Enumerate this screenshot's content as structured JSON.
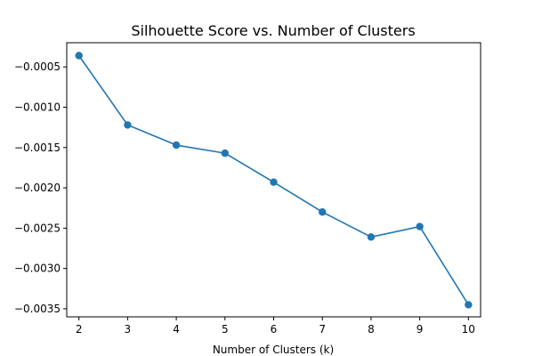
{
  "chart_data": {
    "type": "line",
    "title": "Silhouette Score vs. Number of Clusters",
    "xlabel": "Number of Clusters (k)",
    "ylabel": "",
    "x": [
      2,
      3,
      4,
      5,
      6,
      7,
      8,
      9,
      10
    ],
    "series": [
      {
        "values": [
          -0.00036,
          -0.00122,
          -0.00147,
          -0.00157,
          -0.00193,
          -0.0023,
          -0.00261,
          -0.00248,
          -0.00345
        ],
        "color": "#1f77b4",
        "marker": "circle"
      }
    ],
    "xlim": [
      1.75,
      10.25
    ],
    "ylim": [
      -0.0036,
      -0.0002
    ],
    "xticks": [
      2,
      3,
      4,
      5,
      6,
      7,
      8,
      9,
      10
    ],
    "yticks": [
      -0.0005,
      -0.001,
      -0.0015,
      -0.002,
      -0.0025,
      -0.003,
      -0.0035
    ],
    "ytick_labels": [
      "−0.0005",
      "−0.0010",
      "−0.0015",
      "−0.0020",
      "−0.0025",
      "−0.0030",
      "−0.0035"
    ],
    "grid": false,
    "legend": "none"
  }
}
